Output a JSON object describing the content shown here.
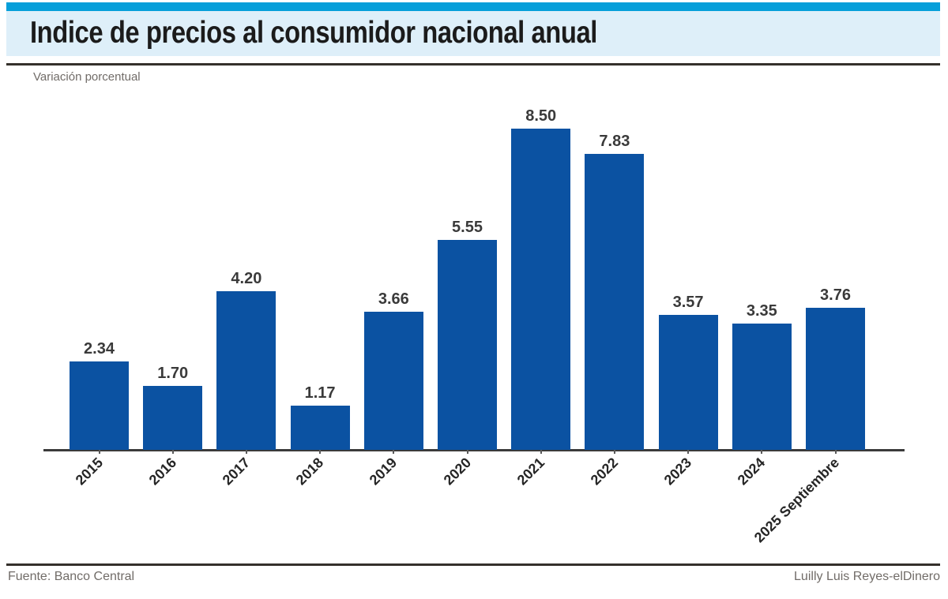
{
  "header": {
    "title": "Indice de precios al consumidor nacional anual",
    "subtitle": "Variación porcentual"
  },
  "footer": {
    "source": "Fuente: Banco Central",
    "credit": "Luilly Luis Reyes-elDinero"
  },
  "colors": {
    "accent_strip": "#069fda",
    "title_band_bg": "#deeff9",
    "rule": "#34302b",
    "bar": "#0b52a2",
    "axis_line": "#3b3b3b",
    "value_label_text": "#3a3a3a",
    "axis_label_text": "#262626",
    "muted_text": "#716c68"
  },
  "chart_data": {
    "type": "bar",
    "title": "Indice de precios al consumidor nacional anual",
    "subtitle": "Variación porcentual",
    "categories": [
      "2015",
      "2016",
      "2017",
      "2018",
      "2019",
      "2020",
      "2021",
      "2022",
      "2023",
      "2024",
      "2025 Septiembre"
    ],
    "values": [
      2.34,
      1.7,
      4.2,
      1.17,
      3.66,
      5.55,
      8.5,
      7.83,
      3.57,
      3.35,
      3.76
    ],
    "value_labels": [
      "2.34",
      "1.70",
      "4.20",
      "1.17",
      "3.66",
      "5.55",
      "8.50",
      "7.83",
      "3.57",
      "3.35",
      "3.76"
    ],
    "xlabel": "",
    "ylabel": "Variación porcentual",
    "ylim": [
      0,
      9.4
    ],
    "grid": false,
    "legend": false,
    "bar_color": "#0b52a2",
    "source": "Fuente: Banco Central",
    "credit": "Luilly Luis Reyes-elDinero"
  }
}
